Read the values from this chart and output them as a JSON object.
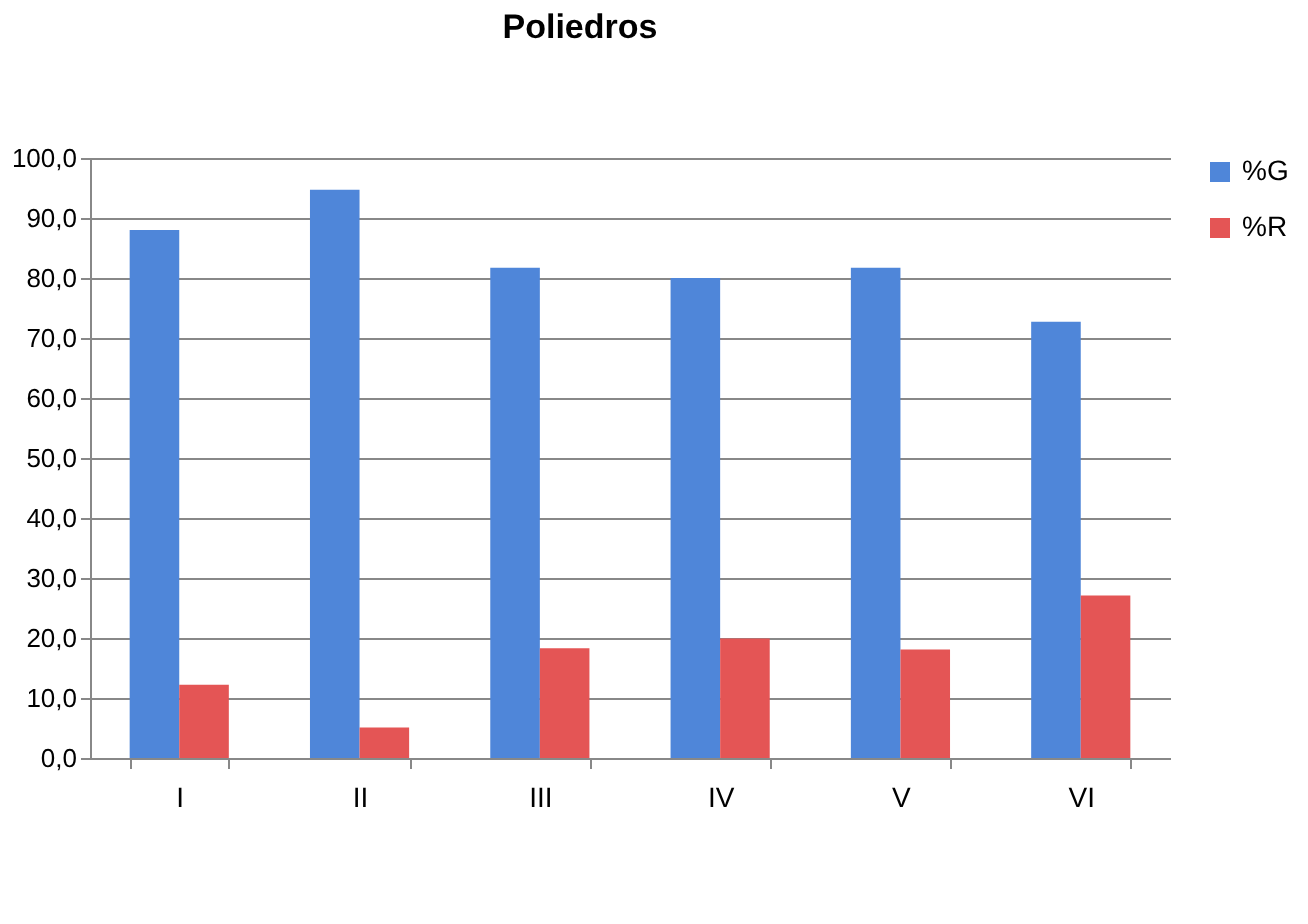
{
  "chart_data": {
    "type": "bar",
    "title": "Poliedros",
    "categories": [
      "I",
      "II",
      "III",
      "IV",
      "V",
      "VI"
    ],
    "series": [
      {
        "name": "%G",
        "color": "#4f86d9",
        "values": [
          88.0,
          94.7,
          81.7,
          80.0,
          81.7,
          72.7
        ]
      },
      {
        "name": "%R",
        "color": "#e45555",
        "values": [
          12.2,
          5.1,
          18.3,
          19.9,
          18.1,
          27.1
        ]
      }
    ],
    "ylim": [
      0,
      100
    ],
    "yticks": [
      {
        "value": 0,
        "label": "0,0"
      },
      {
        "value": 10,
        "label": "10,0"
      },
      {
        "value": 20,
        "label": "20,0"
      },
      {
        "value": 30,
        "label": "30,0"
      },
      {
        "value": 40,
        "label": "40,0"
      },
      {
        "value": 50,
        "label": "50,0"
      },
      {
        "value": 60,
        "label": "60,0"
      },
      {
        "value": 70,
        "label": "70,0"
      },
      {
        "value": 80,
        "label": "80,0"
      },
      {
        "value": 90,
        "label": "90,0"
      },
      {
        "value": 100,
        "label": "100,0"
      }
    ],
    "grid": "y",
    "legend": "right"
  }
}
